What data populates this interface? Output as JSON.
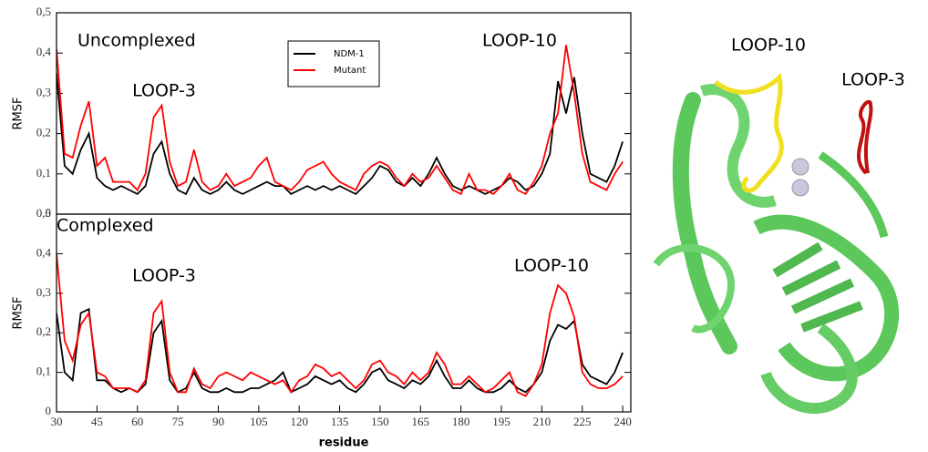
{
  "chart_data": [
    {
      "type": "line",
      "y_label": "RMSF",
      "annotations": [
        "Uncomplexed",
        "LOOP-3",
        "LOOP-10"
      ],
      "legend": "top-center",
      "xlim": [
        30,
        243
      ],
      "ylim": [
        0,
        0.5
      ],
      "yticks": [
        0,
        {
          "value": 0.1,
          "label": "0,1"
        },
        {
          "value": 0.2,
          "label": "0,2"
        },
        {
          "value": 0.3,
          "label": "0,3"
        },
        {
          "value": 0.4,
          "label": "0,4"
        },
        {
          "value": 0.5,
          "label": "0,5"
        }
      ],
      "x": [
        30,
        33,
        36,
        39,
        42,
        45,
        48,
        51,
        54,
        57,
        60,
        63,
        66,
        69,
        72,
        75,
        78,
        81,
        84,
        87,
        90,
        93,
        96,
        99,
        102,
        105,
        108,
        111,
        114,
        117,
        120,
        123,
        126,
        129,
        132,
        135,
        138,
        141,
        144,
        147,
        150,
        153,
        156,
        159,
        162,
        165,
        168,
        171,
        174,
        177,
        180,
        183,
        186,
        189,
        192,
        195,
        198,
        201,
        204,
        207,
        210,
        213,
        216,
        219,
        222,
        225,
        228,
        231,
        234,
        237,
        240
      ],
      "series": [
        {
          "name": "NDM-1",
          "color": "#000000",
          "values": [
            0.35,
            0.12,
            0.1,
            0.16,
            0.2,
            0.09,
            0.07,
            0.06,
            0.07,
            0.06,
            0.05,
            0.07,
            0.15,
            0.18,
            0.1,
            0.06,
            0.05,
            0.09,
            0.06,
            0.05,
            0.06,
            0.08,
            0.06,
            0.05,
            0.06,
            0.07,
            0.08,
            0.07,
            0.07,
            0.05,
            0.06,
            0.07,
            0.06,
            0.07,
            0.06,
            0.07,
            0.06,
            0.05,
            0.07,
            0.09,
            0.12,
            0.11,
            0.08,
            0.07,
            0.09,
            0.07,
            0.1,
            0.14,
            0.1,
            0.07,
            0.06,
            0.07,
            0.06,
            0.05,
            0.06,
            0.07,
            0.09,
            0.08,
            0.06,
            0.07,
            0.1,
            0.15,
            0.33,
            0.25,
            0.34,
            0.2,
            0.1,
            0.09,
            0.08,
            0.12,
            0.18
          ]
        },
        {
          "name": "Mutant",
          "color": "#ff0000",
          "values": [
            0.41,
            0.15,
            0.14,
            0.22,
            0.28,
            0.12,
            0.14,
            0.08,
            0.08,
            0.08,
            0.06,
            0.1,
            0.24,
            0.27,
            0.13,
            0.07,
            0.08,
            0.16,
            0.08,
            0.06,
            0.07,
            0.1,
            0.07,
            0.08,
            0.09,
            0.12,
            0.14,
            0.08,
            0.07,
            0.06,
            0.08,
            0.11,
            0.12,
            0.13,
            0.1,
            0.08,
            0.07,
            0.06,
            0.1,
            0.12,
            0.13,
            0.12,
            0.09,
            0.07,
            0.1,
            0.08,
            0.09,
            0.12,
            0.09,
            0.06,
            0.05,
            0.1,
            0.06,
            0.06,
            0.05,
            0.07,
            0.1,
            0.06,
            0.05,
            0.08,
            0.12,
            0.2,
            0.25,
            0.42,
            0.3,
            0.15,
            0.08,
            0.07,
            0.06,
            0.1,
            0.13
          ]
        }
      ]
    },
    {
      "type": "line",
      "y_label": "RMSF",
      "x_label": "residue",
      "annotations": [
        "Complexed",
        "LOOP-3",
        "LOOP-10"
      ],
      "xlim": [
        30,
        243
      ],
      "ylim": [
        0,
        0.5
      ],
      "xticks": [
        30,
        45,
        60,
        75,
        90,
        105,
        120,
        135,
        150,
        165,
        180,
        195,
        210,
        225,
        240
      ],
      "yticks": [
        0,
        {
          "value": 0.1,
          "label": "0,1"
        },
        {
          "value": 0.2,
          "label": "0,2"
        },
        {
          "value": 0.3,
          "label": "0,3"
        },
        {
          "value": 0.4,
          "label": "0,4"
        },
        {
          "value": 0.5,
          "label": "0,5"
        }
      ],
      "x": [
        30,
        33,
        36,
        39,
        42,
        45,
        48,
        51,
        54,
        57,
        60,
        63,
        66,
        69,
        72,
        75,
        78,
        81,
        84,
        87,
        90,
        93,
        96,
        99,
        102,
        105,
        108,
        111,
        114,
        117,
        120,
        123,
        126,
        129,
        132,
        135,
        138,
        141,
        144,
        147,
        150,
        153,
        156,
        159,
        162,
        165,
        168,
        171,
        174,
        177,
        180,
        183,
        186,
        189,
        192,
        195,
        198,
        201,
        204,
        207,
        210,
        213,
        216,
        219,
        222,
        225,
        228,
        231,
        234,
        237,
        240
      ],
      "series": [
        {
          "color": "#000000",
          "values": [
            0.25,
            0.1,
            0.08,
            0.25,
            0.26,
            0.08,
            0.08,
            0.06,
            0.05,
            0.06,
            0.05,
            0.07,
            0.2,
            0.23,
            0.08,
            0.05,
            0.06,
            0.1,
            0.06,
            0.05,
            0.05,
            0.06,
            0.05,
            0.05,
            0.06,
            0.06,
            0.07,
            0.08,
            0.1,
            0.05,
            0.06,
            0.07,
            0.09,
            0.08,
            0.07,
            0.08,
            0.06,
            0.05,
            0.07,
            0.1,
            0.11,
            0.08,
            0.07,
            0.06,
            0.08,
            0.07,
            0.09,
            0.13,
            0.09,
            0.06,
            0.06,
            0.08,
            0.06,
            0.05,
            0.05,
            0.06,
            0.08,
            0.06,
            0.05,
            0.07,
            0.1,
            0.18,
            0.22,
            0.21,
            0.23,
            0.12,
            0.09,
            0.08,
            0.07,
            0.1,
            0.15
          ]
        },
        {
          "color": "#ff0000",
          "values": [
            0.4,
            0.18,
            0.13,
            0.22,
            0.25,
            0.1,
            0.09,
            0.06,
            0.06,
            0.06,
            0.05,
            0.08,
            0.25,
            0.28,
            0.1,
            0.05,
            0.05,
            0.11,
            0.07,
            0.06,
            0.09,
            0.1,
            0.09,
            0.08,
            0.1,
            0.09,
            0.08,
            0.07,
            0.08,
            0.05,
            0.08,
            0.09,
            0.12,
            0.11,
            0.09,
            0.1,
            0.08,
            0.06,
            0.08,
            0.12,
            0.13,
            0.1,
            0.09,
            0.07,
            0.1,
            0.08,
            0.1,
            0.15,
            0.12,
            0.07,
            0.07,
            0.09,
            0.07,
            0.05,
            0.06,
            0.08,
            0.1,
            0.05,
            0.04,
            0.07,
            0.12,
            0.25,
            0.32,
            0.3,
            0.24,
            0.1,
            0.07,
            0.06,
            0.06,
            0.07,
            0.09
          ]
        }
      ]
    }
  ],
  "structure": {
    "labels": [
      "LOOP-10",
      "LOOP-3"
    ]
  }
}
